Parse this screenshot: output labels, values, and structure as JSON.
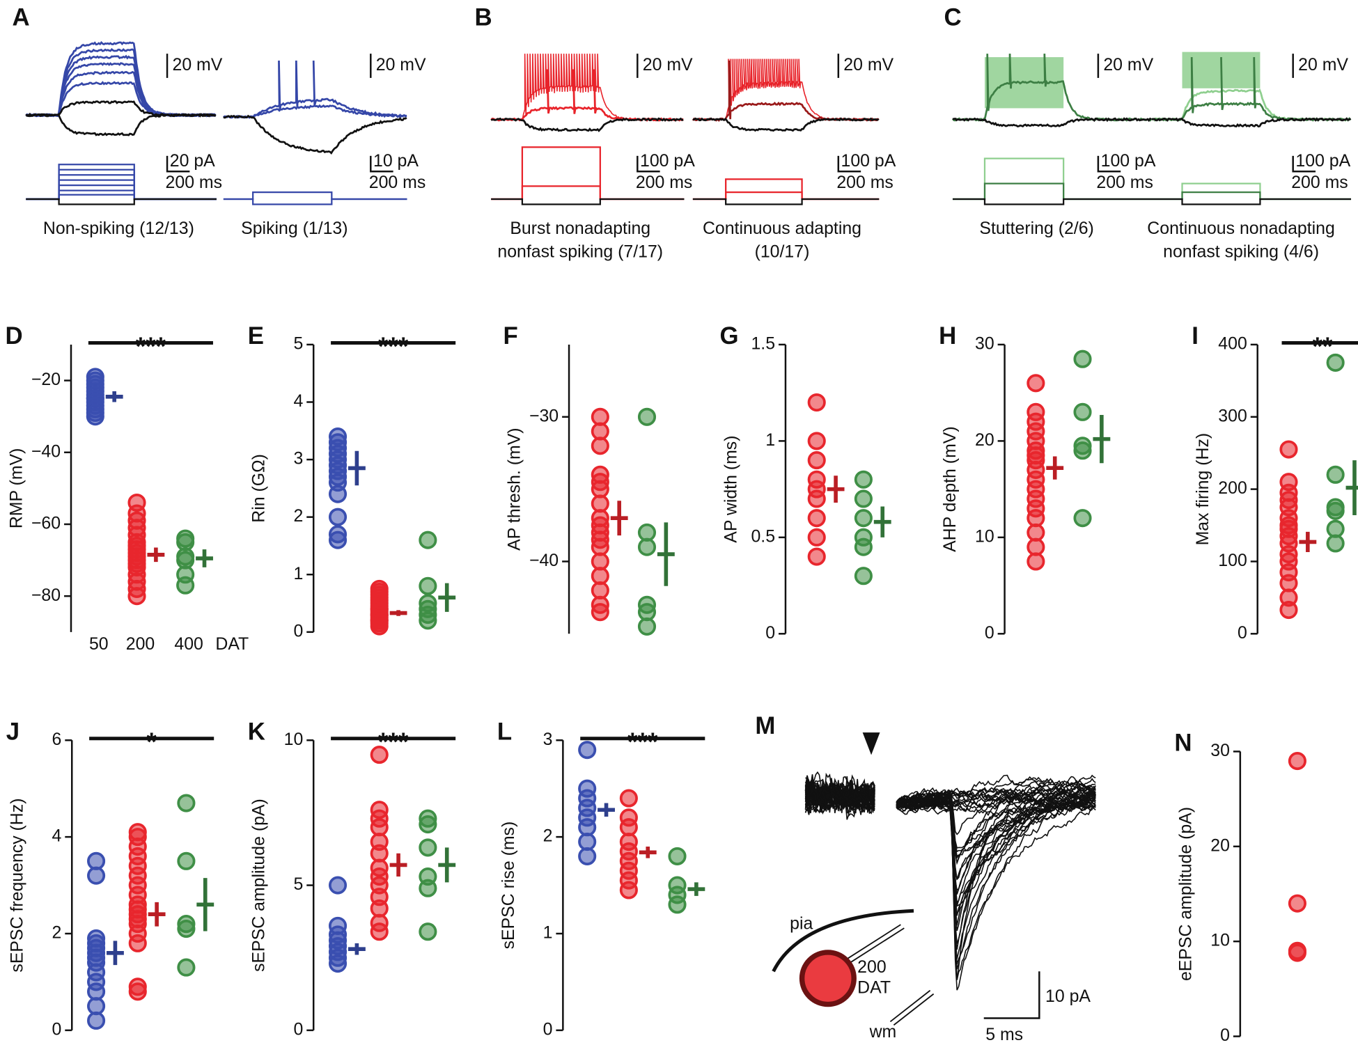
{
  "top_panels": [
    {
      "label": "A",
      "cells": [
        {
          "caption": [
            "Non-spiking (12/13)"
          ],
          "voltage_scale": "20 mV",
          "current_scale": "20 pA",
          "time_scale": "200 ms"
        },
        {
          "caption": [
            "Spiking (1/13)"
          ],
          "voltage_scale": "20 mV",
          "current_scale": "10 pA",
          "time_scale": "200 ms"
        }
      ]
    },
    {
      "label": "B",
      "cells": [
        {
          "caption": [
            "Burst nonadapting",
            "nonfast spiking (7/17)"
          ],
          "voltage_scale": "20 mV",
          "current_scale": "100 pA",
          "time_scale": "200 ms"
        },
        {
          "caption": [
            "Continuous adapting",
            "(10/17)"
          ],
          "voltage_scale": "20 mV",
          "current_scale": "100 pA",
          "time_scale": "200 ms"
        }
      ]
    },
    {
      "label": "C",
      "cells": [
        {
          "caption": [
            "Stuttering (2/6)"
          ],
          "voltage_scale": "20 mV",
          "current_scale": "100 pA",
          "time_scale": "200 ms"
        },
        {
          "caption": [
            "Continuous nonadapting",
            "nonfast spiking (4/6)"
          ],
          "voltage_scale": "20 mV",
          "current_scale": "100 pA",
          "time_scale": "200 ms"
        }
      ]
    }
  ],
  "group_labels": {
    "names": [
      "50",
      "200",
      "400"
    ],
    "suffix": "DAT"
  },
  "charts": [
    {
      "label": "D",
      "type": "scatter",
      "ylabel": "RMP (mV)",
      "ylim": [
        -90,
        -10
      ],
      "yticks": [
        {
          "value": -20,
          "label": "−20"
        },
        {
          "value": -40,
          "label": "−40"
        },
        {
          "value": -60,
          "label": "−60"
        },
        {
          "value": -80,
          "label": "−80"
        }
      ],
      "significance": "***",
      "significance_span": [
        0,
        2
      ],
      "groups": [
        {
          "color": "#3a4fb0",
          "values": [
            -19,
            -20,
            -21,
            -22,
            -23,
            -24,
            -25,
            -25,
            -26,
            -27,
            -28,
            -29,
            -30
          ],
          "mean": -24.5,
          "error": 1.5
        },
        {
          "color": "#e8262d",
          "values": [
            -54,
            -57,
            -59,
            -61,
            -63,
            -65,
            -66,
            -67,
            -68,
            -69,
            -70,
            -71,
            -72,
            -74,
            -76,
            -78,
            -80
          ],
          "mean": -68.5,
          "error": 2
        },
        {
          "color": "#3f8f46",
          "values": [
            -64,
            -65,
            -69,
            -70,
            -74,
            -77
          ],
          "mean": -69.5,
          "error": 2.5
        }
      ]
    },
    {
      "label": "E",
      "type": "scatter",
      "ylabel": "Rin (GΩ)",
      "ylim": [
        0,
        5
      ],
      "yticks": [
        0,
        1,
        2,
        3,
        4,
        5
      ],
      "significance": "***",
      "significance_span": [
        0,
        2
      ],
      "groups": [
        {
          "color": "#3a4fb0",
          "values": [
            1.6,
            1.7,
            2.0,
            2.4,
            2.6,
            2.7,
            2.8,
            2.9,
            3.0,
            3.1,
            3.2,
            3.3,
            3.4
          ],
          "mean": 2.85,
          "error": 0.3
        },
        {
          "color": "#e8262d",
          "values": [
            0.1,
            0.15,
            0.2,
            0.2,
            0.25,
            0.3,
            0.3,
            0.35,
            0.4,
            0.4,
            0.45,
            0.5,
            0.55,
            0.6,
            0.65,
            0.7,
            0.75
          ],
          "mean": 0.33,
          "error": 0.05
        },
        {
          "color": "#3f8f46",
          "values": [
            0.2,
            0.3,
            0.4,
            0.5,
            0.8,
            1.6
          ],
          "mean": 0.6,
          "error": 0.25
        }
      ]
    },
    {
      "label": "F",
      "type": "scatter",
      "ylabel": "AP thresh. (mV)",
      "ylim": [
        -45,
        -25
      ],
      "yticks": [
        {
          "value": -30,
          "label": "−30"
        },
        {
          "value": -40,
          "label": "−40"
        }
      ],
      "groups": [
        {
          "color": "#e8262d",
          "values": [
            -30,
            -31,
            -32,
            -34,
            -34.5,
            -35,
            -36,
            -37,
            -37.5,
            -38,
            -38.5,
            -39,
            -40,
            -41,
            -42,
            -43,
            -43.5
          ],
          "mean": -37,
          "error": 1.2
        },
        {
          "color": "#3f8f46",
          "values": [
            -30,
            -38,
            -39,
            -43,
            -43.5,
            -44.5
          ],
          "mean": -39.5,
          "error": 2.2
        }
      ]
    },
    {
      "label": "G",
      "type": "scatter",
      "ylabel": "AP width (ms)",
      "ylim": [
        0,
        1.5
      ],
      "yticks": [
        0,
        0.5,
        1,
        1.5
      ],
      "groups": [
        {
          "color": "#e8262d",
          "values": [
            0.4,
            0.5,
            0.6,
            0.7,
            0.75,
            0.8,
            0.9,
            1.0,
            1.2
          ],
          "mean": 0.75,
          "error": 0.07
        },
        {
          "color": "#3f8f46",
          "values": [
            0.3,
            0.45,
            0.5,
            0.6,
            0.7,
            0.8
          ],
          "mean": 0.58,
          "error": 0.08
        }
      ]
    },
    {
      "label": "H",
      "type": "scatter",
      "ylabel": "AHP depth (mV)",
      "ylim": [
        0,
        30
      ],
      "yticks": [
        0,
        10,
        20,
        30
      ],
      "groups": [
        {
          "color": "#e8262d",
          "values": [
            7.5,
            9,
            10.5,
            12,
            13,
            14,
            15,
            16,
            17,
            18,
            18.5,
            19,
            20,
            21,
            22,
            23,
            26
          ],
          "mean": 17.2,
          "error": 1.2
        },
        {
          "color": "#3f8f46",
          "values": [
            12,
            19,
            19.5,
            23,
            28.5
          ],
          "mean": 20.2,
          "error": 2.5
        }
      ]
    },
    {
      "label": "I",
      "type": "scatter",
      "ylabel": "Max firing (Hz)",
      "ylim": [
        0,
        400
      ],
      "yticks": [
        0,
        100,
        200,
        300,
        400
      ],
      "significance": "**",
      "significance_span": [
        0,
        1
      ],
      "groups": [
        {
          "color": "#e8262d",
          "values": [
            33,
            50,
            70,
            85,
            100,
            110,
            125,
            135,
            145,
            150,
            160,
            175,
            185,
            195,
            210,
            255
          ],
          "mean": 127,
          "error": 14
        },
        {
          "color": "#3f8f46",
          "values": [
            125,
            145,
            170,
            175,
            220,
            375
          ],
          "mean": 202,
          "error": 38
        }
      ]
    },
    {
      "label": "J",
      "type": "scatter",
      "ylabel": "sEPSC frequency (Hz)",
      "ylim": [
        0,
        6
      ],
      "yticks": [
        0,
        2,
        4,
        6
      ],
      "significance": "*",
      "significance_span": [
        0,
        2
      ],
      "groups": [
        {
          "color": "#3a4fb0",
          "values": [
            0.2,
            0.5,
            0.8,
            1.0,
            1.2,
            1.4,
            1.5,
            1.6,
            1.7,
            1.8,
            1.9,
            3.2,
            3.5
          ],
          "mean": 1.6,
          "error": 0.25
        },
        {
          "color": "#e8262d",
          "values": [
            0.8,
            0.9,
            1.8,
            2.0,
            2.2,
            2.3,
            2.4,
            2.5,
            2.6,
            2.8,
            3.0,
            3.2,
            3.4,
            3.6,
            3.8,
            4.0,
            4.1
          ],
          "mean": 2.4,
          "error": 0.25
        },
        {
          "color": "#3f8f46",
          "values": [
            1.3,
            2.1,
            2.2,
            3.5,
            4.7
          ],
          "mean": 2.6,
          "error": 0.55
        }
      ]
    },
    {
      "label": "K",
      "type": "scatter",
      "ylabel": "sEPSC amplitude (pA)",
      "ylim": [
        0,
        10
      ],
      "yticks": [
        0,
        5,
        10
      ],
      "significance": "***",
      "significance_span": [
        0,
        2
      ],
      "groups": [
        {
          "color": "#3a4fb0",
          "values": [
            2.3,
            2.5,
            2.7,
            2.9,
            3.1,
            3.3,
            3.6,
            5.0
          ],
          "mean": 2.8,
          "error": 0.2
        },
        {
          "color": "#e8262d",
          "values": [
            3.4,
            3.7,
            4.2,
            4.6,
            5.0,
            5.3,
            5.6,
            6.1,
            6.5,
            7.0,
            7.3,
            7.6,
            9.5
          ],
          "mean": 5.7,
          "error": 0.4
        },
        {
          "color": "#3f8f46",
          "values": [
            3.4,
            4.9,
            5.3,
            6.3,
            7.1,
            7.3
          ],
          "mean": 5.7,
          "error": 0.6
        }
      ]
    },
    {
      "label": "L",
      "type": "scatter",
      "ylabel": "sEPSC rise (ms)",
      "ylim": [
        0,
        3
      ],
      "yticks": [
        0,
        1,
        2,
        3
      ],
      "significance": "***",
      "significance_span": [
        0,
        2
      ],
      "groups": [
        {
          "color": "#3a4fb0",
          "values": [
            1.8,
            1.95,
            2.1,
            2.2,
            2.3,
            2.4,
            2.5,
            2.9
          ],
          "mean": 2.28,
          "error": 0.07
        },
        {
          "color": "#e8262d",
          "values": [
            1.45,
            1.55,
            1.65,
            1.75,
            1.85,
            1.95,
            2.1,
            2.2,
            2.4
          ],
          "mean": 1.84,
          "error": 0.06
        },
        {
          "color": "#3f8f46",
          "values": [
            1.3,
            1.4,
            1.5,
            1.8
          ],
          "mean": 1.46,
          "error": 0.07
        }
      ]
    },
    {
      "label": "N",
      "type": "scatter",
      "ylabel": "eEPSC amplitude (pA)",
      "ylim": [
        0,
        30
      ],
      "yticks": [
        0,
        10,
        20,
        30
      ],
      "groups": [
        {
          "color": "#e8262d",
          "values": [
            29,
            14,
            9,
            8.8
          ]
        }
      ]
    }
  ],
  "panel_m": {
    "label": "M",
    "pia": "pia",
    "wm": "wm",
    "cell": [
      "200",
      "DAT"
    ],
    "scale_y": "10 pA",
    "scale_x": "5 ms"
  }
}
